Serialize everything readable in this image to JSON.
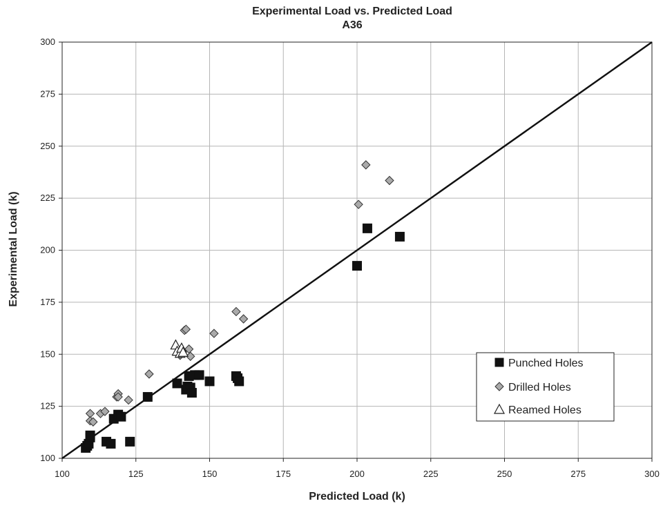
{
  "chart_data": {
    "type": "scatter",
    "title": "Experimental Load vs. Predicted Load",
    "subtitle": "A36",
    "xlabel": "Predicted Load (k)",
    "ylabel": "Experimental  Load (k)",
    "xlim": [
      100,
      300
    ],
    "ylim": [
      100,
      300
    ],
    "xticks": [
      100,
      125,
      150,
      175,
      200,
      225,
      250,
      275,
      300
    ],
    "yticks": [
      100,
      125,
      150,
      175,
      200,
      225,
      250,
      275,
      300
    ],
    "grid": true,
    "legend_position": "bottom-right",
    "reference_line": {
      "from": [
        100,
        100
      ],
      "to": [
        300,
        300
      ],
      "color": "#111111"
    },
    "series": [
      {
        "name": "Punched Holes",
        "marker": "square",
        "color": "#111111",
        "points": [
          [
            108,
            105
          ],
          [
            108.5,
            106
          ],
          [
            109,
            107
          ],
          [
            109.5,
            110
          ],
          [
            109.5,
            111
          ],
          [
            115,
            108
          ],
          [
            116.5,
            107
          ],
          [
            117.5,
            119
          ],
          [
            119,
            121
          ],
          [
            120,
            120
          ],
          [
            123,
            108
          ],
          [
            129,
            129.5
          ],
          [
            139,
            136
          ],
          [
            142,
            133
          ],
          [
            142.5,
            134.5
          ],
          [
            143,
            139.5
          ],
          [
            143.5,
            134
          ],
          [
            144,
            131.5
          ],
          [
            145,
            140
          ],
          [
            146.5,
            140
          ],
          [
            150,
            137
          ],
          [
            159,
            139.5
          ],
          [
            159.5,
            138.5
          ],
          [
            160,
            137
          ],
          [
            200,
            192.5
          ],
          [
            203.5,
            210.5
          ],
          [
            214.5,
            206.5
          ]
        ]
      },
      {
        "name": "Drilled Holes",
        "marker": "diamond",
        "color": "#aaaaaa",
        "points": [
          [
            109.5,
            121.5
          ],
          [
            109.5,
            118
          ],
          [
            110.5,
            117.5
          ],
          [
            113,
            121.5
          ],
          [
            114.5,
            122.5
          ],
          [
            118.5,
            129.5
          ],
          [
            119,
            131
          ],
          [
            119,
            129.5
          ],
          [
            122.5,
            128
          ],
          [
            129.5,
            140.5
          ],
          [
            140,
            149.5
          ],
          [
            141.5,
            161.5
          ],
          [
            142,
            162
          ],
          [
            143,
            152.5
          ],
          [
            143.5,
            149
          ],
          [
            151.5,
            160
          ],
          [
            159,
            170.5
          ],
          [
            161.5,
            167
          ],
          [
            200.5,
            222
          ],
          [
            203,
            241
          ],
          [
            211,
            233.5
          ]
        ]
      },
      {
        "name": "Reamed Holes",
        "marker": "triangle",
        "color": "#ffffff",
        "points": [
          [
            138.5,
            154.5
          ],
          [
            139,
            151.5
          ],
          [
            140,
            150.5
          ],
          [
            140.5,
            153
          ],
          [
            141,
            151
          ]
        ]
      }
    ]
  }
}
